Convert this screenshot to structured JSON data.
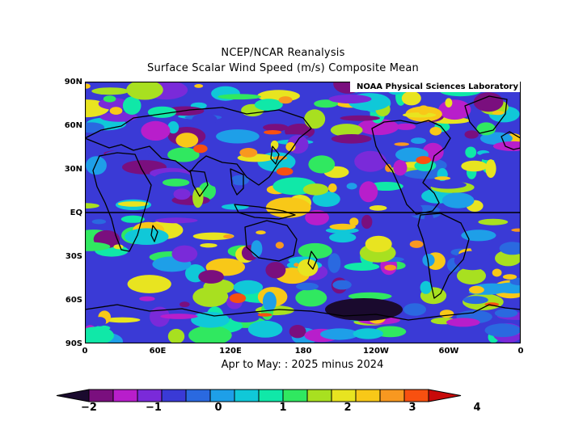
{
  "header": {
    "title": "NCEP/NCAR Reanalysis",
    "subtitle": "Surface Scalar Wind Speed (m/s) Composite Mean"
  },
  "credit": "NOAA Physical Sciences Laboratory",
  "axes": {
    "lat_labels": [
      "90N",
      "60N",
      "30N",
      "EQ",
      "30S",
      "60S",
      "90S"
    ],
    "lon_labels": [
      "0",
      "60E",
      "120E",
      "180",
      "120W",
      "60W",
      "0"
    ]
  },
  "period_label": "Apr to May: : 2025 minus 2024",
  "colorbar": {
    "labels": [
      "−2",
      "−1",
      "0",
      "1",
      "2",
      "3",
      "4"
    ],
    "colors": [
      "#1a0a2e",
      "#7a0f7e",
      "#b81ecb",
      "#7a2ad9",
      "#3a3ad6",
      "#2a69e0",
      "#1e9fe8",
      "#10c8d8",
      "#10e8a8",
      "#30e860",
      "#a8e020",
      "#e8e420",
      "#f8c818",
      "#f89820",
      "#f85010",
      "#c80a0a"
    ]
  },
  "map": {
    "region": "Global",
    "lat_range": [
      -90,
      90
    ],
    "lon_range": [
      0,
      360
    ],
    "projection": "cylindrical equidistant, Pacific-centered",
    "equator_line": true
  }
}
